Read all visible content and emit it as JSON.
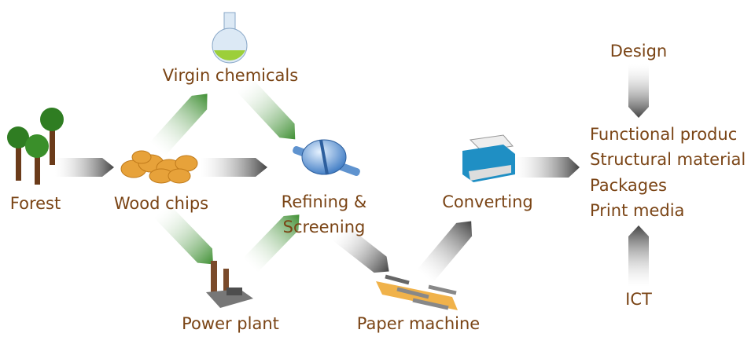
{
  "nodes": [
    {
      "label": "Forest"
    },
    {
      "label": "Wood chips"
    },
    {
      "label": "Virgin chemicals"
    },
    {
      "lines": [
        "Refining &",
        "Screening"
      ]
    },
    {
      "label": "Power plant"
    },
    {
      "label": "Paper machine"
    },
    {
      "label": "Converting"
    },
    {
      "label": "Design"
    },
    {
      "label": "ICT"
    }
  ],
  "products": [
    "Functional produc",
    "Structural material",
    "Packages",
    "Print media"
  ]
}
